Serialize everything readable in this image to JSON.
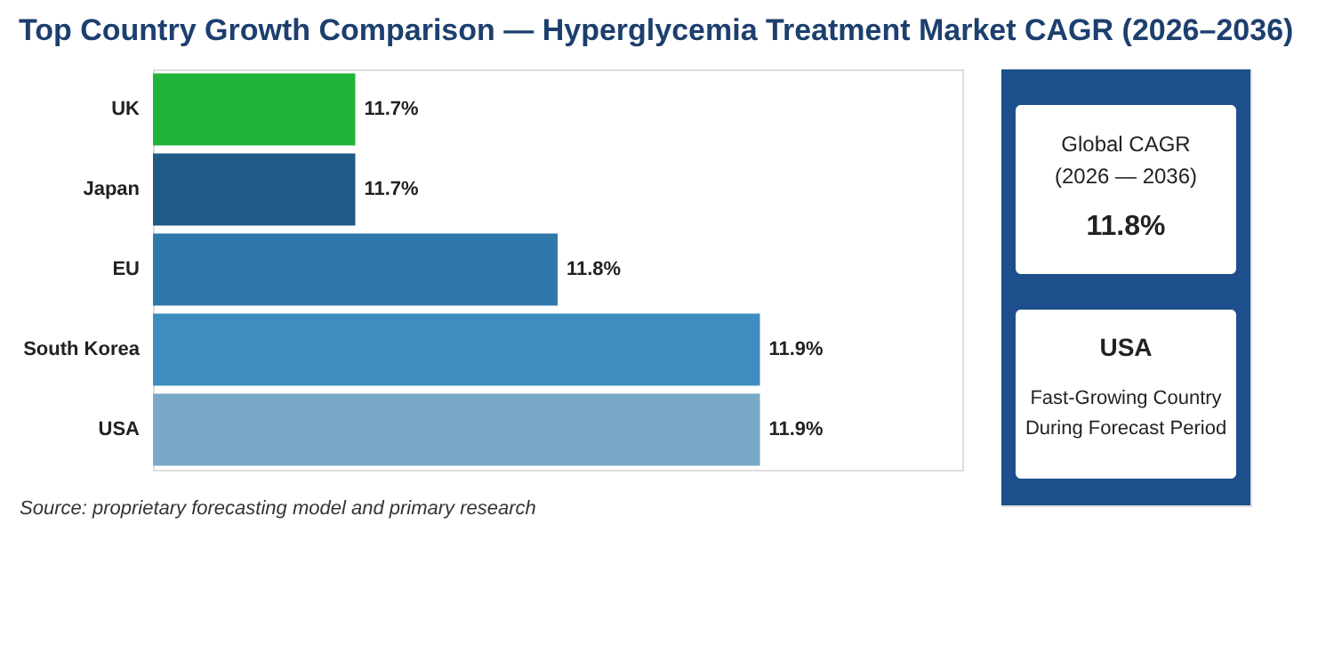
{
  "chart_data": {
    "type": "bar",
    "orientation": "horizontal",
    "title": "Top Country Growth Comparison — Hyperglycemia Treatment Market CAGR (2026–2036)",
    "categories": [
      "UK",
      "Japan",
      "EU",
      "South Korea",
      "USA"
    ],
    "values": [
      11.7,
      11.7,
      11.8,
      11.9,
      11.9
    ],
    "colors": [
      "#22b33a",
      "#1e5b86",
      "#2f78ac",
      "#3f8dc0",
      "#79a9c6"
    ],
    "value_labels": [
      "11.7%",
      "11.7%",
      "11.8%",
      "11.9%",
      "11.9%"
    ],
    "xlim": [
      11.6,
      12.0
    ],
    "grid": false,
    "annotations": [
      "Source: proprietary forecasting model and primary research",
      "Global CAGR",
      "(2026 — 2036)",
      "11.8%",
      "USA",
      "Fast-Growing Country",
      "During Forecast Period"
    ]
  }
}
